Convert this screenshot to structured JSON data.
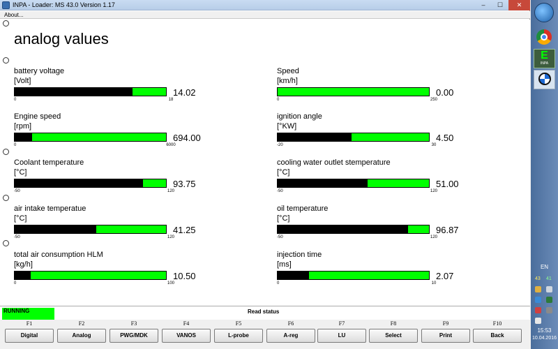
{
  "window": {
    "title": "INPA - Loader:  MS 43.0 Version 1.17",
    "minimize": "–",
    "maximize": "☐",
    "close": "✕"
  },
  "menu": {
    "about": "About..."
  },
  "page_title": "analog values",
  "gauges": [
    {
      "label": "battery voltage",
      "unit": "[Volt]",
      "min": "0",
      "max": "18",
      "value": "14.02",
      "fraction": 0.779
    },
    {
      "label": "Speed",
      "unit": "[km/h]",
      "min": "0",
      "max": "250",
      "value": "0.00",
      "fraction": 0.0
    },
    {
      "label": "Engine speed",
      "unit": "[rpm]",
      "min": "0",
      "max": "6000",
      "value": "694.00",
      "fraction": 0.116
    },
    {
      "label": "ignition angle",
      "unit": "[°KW]",
      "min": "-20",
      "max": "30",
      "value": "4.50",
      "fraction": 0.49
    },
    {
      "label": "Coolant temperature",
      "unit": "[°C]",
      "min": "-50",
      "max": "120",
      "value": "93.75",
      "fraction": 0.846
    },
    {
      "label": "cooling water outlet stemperature",
      "unit": "[°C]",
      "min": "-50",
      "max": "120",
      "value": "51.00",
      "fraction": 0.594
    },
    {
      "label": "air intake temperatue",
      "unit": "[°C]",
      "min": "-50",
      "max": "120",
      "value": "41.25",
      "fraction": 0.537
    },
    {
      "label": "oil temperature",
      "unit": "[°C]",
      "min": "-50",
      "max": "120",
      "value": "96.87",
      "fraction": 0.864
    },
    {
      "label": "total air consumption HLM",
      "unit": "[kg/h]",
      "min": "0",
      "max": "100",
      "value": "10.50",
      "fraction": 0.105
    },
    {
      "label": "injection time",
      "unit": "[ms]",
      "min": "0",
      "max": "10",
      "value": "2.07",
      "fraction": 0.207
    }
  ],
  "status": {
    "running": "RUNNING",
    "read_status": "Read status"
  },
  "fkeys": [
    {
      "key": "F1",
      "label": "Digital"
    },
    {
      "key": "F2",
      "label": "Analog"
    },
    {
      "key": "F3",
      "label": "PWG/MDK"
    },
    {
      "key": "F4",
      "label": "VANOS"
    },
    {
      "key": "F5",
      "label": "L-probe"
    },
    {
      "key": "F6",
      "label": "A-reg"
    },
    {
      "key": "F7",
      "label": "LU"
    },
    {
      "key": "F8",
      "label": "Select"
    },
    {
      "key": "F9",
      "label": "Print"
    },
    {
      "key": "F10",
      "label": "Back"
    }
  ],
  "taskbar": {
    "inpa_letter": "E",
    "inpa_text": "INPA",
    "lang": "EN",
    "tray_num_a": "43",
    "tray_num_b": "41",
    "time": "15:53",
    "date": "10.04.2016"
  },
  "colors": {
    "bar_bg": "#00ff00",
    "bar_fill": "#000000",
    "running_bg": "#00ff00"
  },
  "icons": [
    "app-icon",
    "windows-start-icon",
    "chrome-icon",
    "inpa-icon",
    "bmw-icon"
  ]
}
